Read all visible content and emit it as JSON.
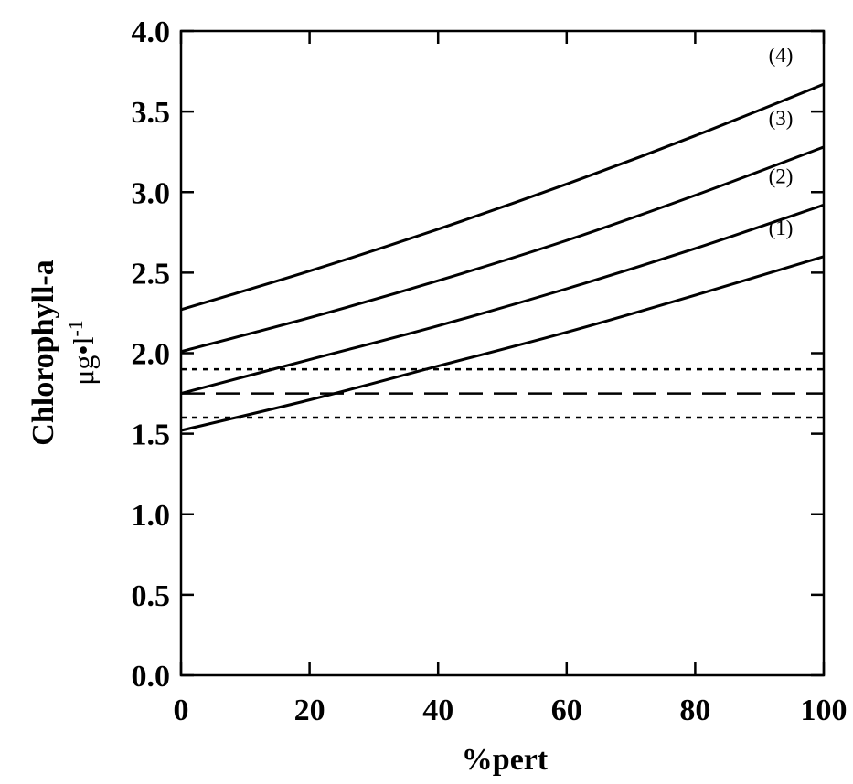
{
  "chart_data": {
    "type": "line",
    "title": "",
    "xlabel": "%pert",
    "ylabel_line1": "Chlorophyll-a",
    "ylabel_line2_base": "μg•l",
    "ylabel_line2_sup": "-1",
    "xlim": [
      0,
      100
    ],
    "ylim": [
      0.0,
      4.0
    ],
    "x_ticks": [
      0,
      20,
      40,
      60,
      80,
      100
    ],
    "x_tick_labels": [
      "0",
      "20",
      "40",
      "60",
      "80",
      "100"
    ],
    "y_ticks": [
      0.0,
      0.5,
      1.0,
      1.5,
      2.0,
      2.5,
      3.0,
      3.5,
      4.0
    ],
    "y_tick_labels": [
      "0.0",
      "0.5",
      "1.0",
      "1.5",
      "2.0",
      "2.5",
      "3.0",
      "3.5",
      "4.0"
    ],
    "grid": false,
    "series": [
      {
        "name": "(1)",
        "style": "solid",
        "x": [
          0,
          20,
          40,
          60,
          80,
          100
        ],
        "y": [
          1.52,
          1.71,
          1.92,
          2.13,
          2.36,
          2.6
        ]
      },
      {
        "name": "(2)",
        "style": "solid",
        "x": [
          0,
          20,
          40,
          60,
          80,
          100
        ],
        "y": [
          1.75,
          1.96,
          2.17,
          2.4,
          2.65,
          2.92
        ]
      },
      {
        "name": "(3)",
        "style": "solid",
        "x": [
          0,
          20,
          40,
          60,
          80,
          100
        ],
        "y": [
          2.01,
          2.22,
          2.45,
          2.7,
          2.98,
          3.28
        ]
      },
      {
        "name": "(4)",
        "style": "solid",
        "x": [
          0,
          20,
          40,
          60,
          80,
          100
        ],
        "y": [
          2.27,
          2.51,
          2.77,
          3.05,
          3.35,
          3.67
        ]
      }
    ],
    "reference_lines": [
      {
        "y": 1.9,
        "style": "dotted"
      },
      {
        "y": 1.75,
        "style": "dashed"
      },
      {
        "y": 1.6,
        "style": "dotted"
      }
    ]
  }
}
